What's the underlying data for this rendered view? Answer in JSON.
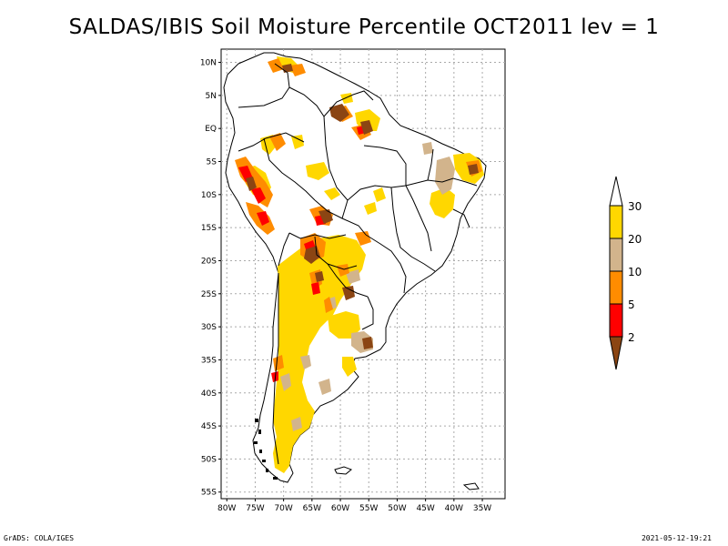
{
  "title": "SALDAS/IBIS Soil Moisture Percentile OCT2011 lev = 1",
  "map": {
    "lat_labels": [
      "10N",
      "5N",
      "EQ",
      "5S",
      "10S",
      "15S",
      "20S",
      "25S",
      "30S",
      "35S",
      "40S",
      "45S",
      "50S",
      "55S"
    ],
    "lon_labels": [
      "80W",
      "75W",
      "70W",
      "65W",
      "60W",
      "55W",
      "50W",
      "45W",
      "40W",
      "35W"
    ],
    "lat_values": [
      10,
      5,
      0,
      -5,
      -10,
      -15,
      -20,
      -25,
      -30,
      -35,
      -40,
      -45,
      -50,
      -55
    ],
    "lon_values": [
      -80,
      -75,
      -70,
      -65,
      -60,
      -55,
      -50,
      -45,
      -40,
      -35
    ],
    "lon_range": [
      -81,
      -31
    ],
    "lat_range": [
      -56,
      12
    ],
    "grid": true
  },
  "legend": {
    "labels": [
      "2",
      "5",
      "10",
      "20",
      "30"
    ],
    "colors": {
      "below_2": "#8b4513",
      "2_5": "#ff0000",
      "5_10": "#ff8c00",
      "10_20": "#d2b48c",
      "20_30": "#ffd700",
      "above_30": "#ffffff"
    }
  },
  "colors": {
    "outline": "#000000",
    "grid": "#aaaaaa"
  },
  "footer": {
    "left": "GrADS: COLA/IGES",
    "right": "2021-05-12-19:21"
  }
}
